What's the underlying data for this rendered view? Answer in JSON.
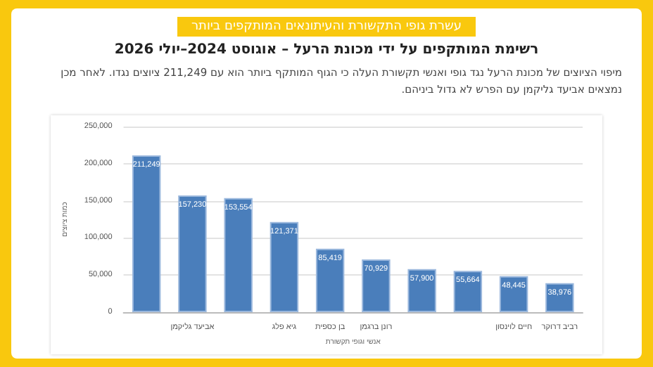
{
  "chart_data": {
    "type": "bar",
    "title": "עשרת גופי התקשורת והעיתונאים המותקפים ביותר",
    "subtitle": "רשימת המותקפים על ידי מכונת הרעל – אוגוסט 2024–יולי 2026",
    "annotations": [
      "מיפוי הציוצים של מכונת הרעל נגד גופי ואנשי תקשורת העלה כי הגוף המותקף ביותר הוא עם 211,249 ציוצים נגדו. לאחר מכן נמצאים אביעד גליקמן עם הפרש לא גדול ביניהם."
    ],
    "xlabel": "אנשי וגופי תקשורת",
    "ylabel": "כמות ציוצים",
    "categories": [
      null,
      "אביעד גליקמן",
      null,
      "גיא פלג",
      "בן כספית",
      "רונן ברגמן",
      null,
      null,
      "חיים לוינסון",
      "רביב דרוקר"
    ],
    "series": [
      {
        "color": "#4a7ebb",
        "values": [
          211249,
          157230,
          153554,
          121371,
          85419,
          70929,
          57900,
          55664,
          48445,
          38976
        ],
        "value_labels": [
          "211,249",
          "157,230",
          "153,554",
          "121,371",
          "85,419",
          "70,929",
          "57,900",
          "55,664",
          "48,445",
          "38,976"
        ]
      }
    ],
    "ylim": [
      0,
      250000
    ],
    "yticks": [
      0,
      {
        "value": 50000,
        "label": "50,000"
      },
      {
        "value": 100000,
        "label": "100,000"
      },
      {
        "value": 150000,
        "label": "150,000"
      },
      {
        "value": 200000,
        "label": "200,000"
      },
      {
        "value": 250000,
        "label": "250,000"
      }
    ],
    "grid": "y"
  }
}
